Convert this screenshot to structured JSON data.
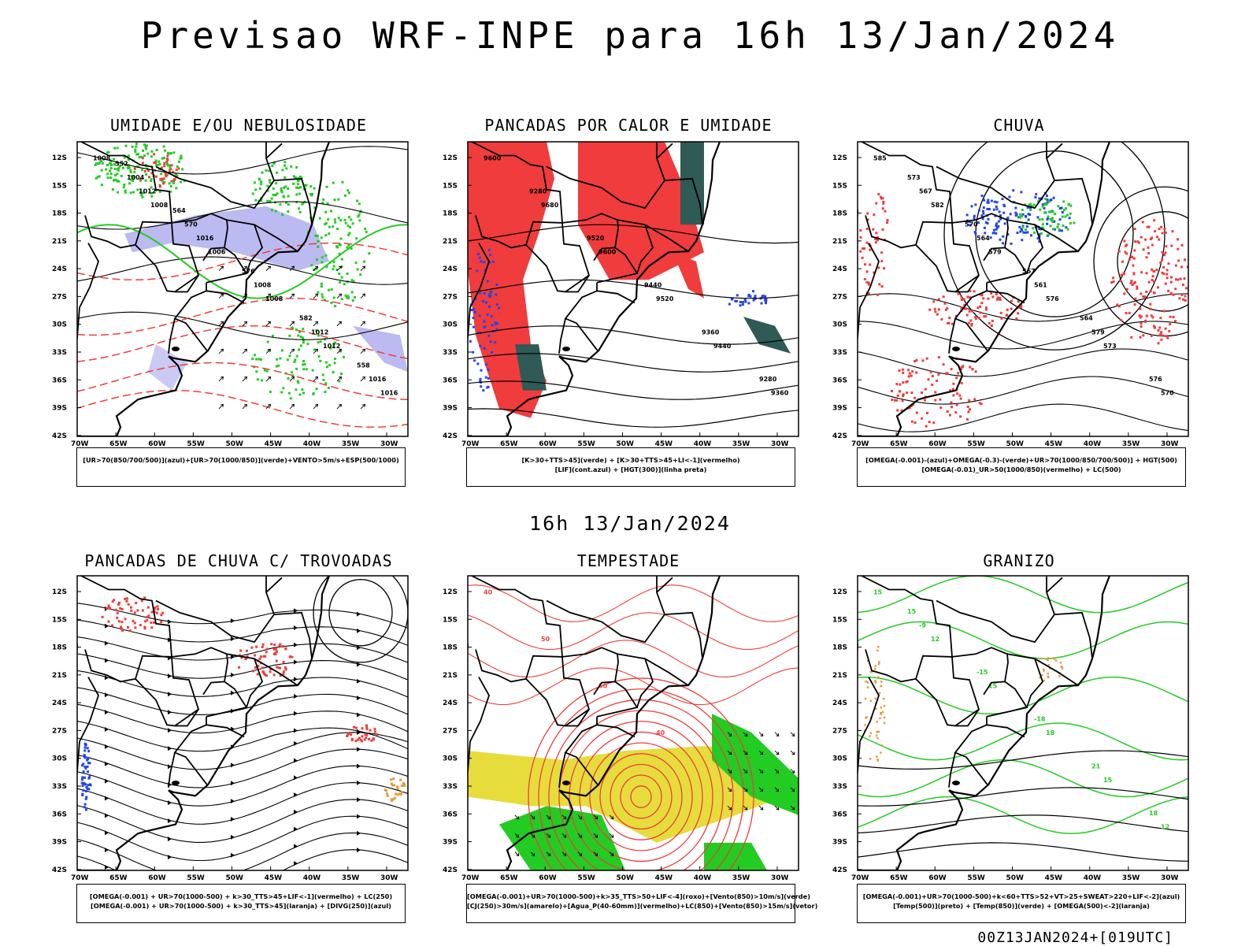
{
  "title": "Previsao WRF-INPE  para 16h 13/Jan/2024",
  "mid_title": "16h 13/Jan/2024",
  "footer": "00Z13JAN2024+[019UTC]",
  "axes": {
    "lat_labels": [
      "12S",
      "15S",
      "18S",
      "21S",
      "24S",
      "27S",
      "30S",
      "33S",
      "36S",
      "39S",
      "42S"
    ],
    "lon_labels": [
      "70W",
      "65W",
      "60W",
      "55W",
      "50W",
      "45W",
      "40W",
      "35W",
      "30W"
    ]
  },
  "colors": {
    "red": "#f03c3c",
    "green": "#22cc22",
    "blue": "#2244ee",
    "lavender": "#b4b4f0",
    "darkgreen": "#2f5a55",
    "yellow": "#e6dc3c",
    "orange": "#e69a3c"
  },
  "chart_data": [
    {
      "id": "umidade",
      "type": "heatmap",
      "title": "UMIDADE E/OU NEBULOSIDADE",
      "legend": [
        "[UR>70(850/700/500)](azul)+[UR>70(1000/850)](verde)+VENTO>5m/s+ESP(500/1000)"
      ],
      "contour_labels": [
        "1008",
        "1008",
        "1006",
        "1008",
        "1012",
        "1016",
        "1012",
        "1016",
        "1008",
        "1012",
        "1016",
        "1004",
        "570",
        "576",
        "582",
        "558",
        "552",
        "564"
      ]
    },
    {
      "id": "pancadas_calor",
      "type": "heatmap",
      "title": "PANCADAS POR CALOR E UMIDADE",
      "legend": [
        "[K>30+TTS>45](verde) + [K>30+TTS>45+LI<-1](vermelho)",
        "[LIF](cont.azul) + [HGT(300)](linha preta)"
      ],
      "contour_labels": [
        "9600",
        "9680",
        "9600",
        "9520",
        "9440",
        "9360",
        "9280",
        "9520",
        "9440",
        "9360",
        "9280"
      ]
    },
    {
      "id": "chuva",
      "type": "heatmap",
      "title": "CHUVA",
      "legend": [
        "[OMEGA(-0.001)-(azul)+OMEGA(-0.3)-(verde)+UR>70(1000/850/700/500)] + HGT(500)",
        "[OMEGA(-0.01)_UR>50(1000/850)(vermelho) + LC(500)"
      ],
      "contour_labels": [
        "585",
        "582",
        "579",
        "576",
        "573",
        "570",
        "567",
        "564",
        "561",
        "579",
        "576",
        "573",
        "570",
        "567",
        "564"
      ]
    },
    {
      "id": "pancadas_trovoadas",
      "type": "heatmap",
      "title": "PANCADAS DE CHUVA C/ TROVOADAS",
      "legend": [
        "[OMEGA(-0.001) + UR>70(1000-500) + k>30_TTS>45+LIF<-1](vermelho) + LC(250)",
        "[OMEGA(-0.001) + UR>70(1000-500) + k>30_TTS>45](laranja) + [DIVG(250)](azul)"
      ]
    },
    {
      "id": "tempestade",
      "type": "heatmap",
      "title": "TEMPESTADE",
      "legend": [
        "[OMEGA(-0.001)+UR>70(1000-500)+k>35_TTS>50+LIF<-4](roxo)+[Vento(850)>10m/s](verde)",
        "[CJ(250)>30m/s](amarelo)+[Agua_P(40-60mm)](vermelho)+LC(850)+[Vento(850)>15m/s](vetor)"
      ],
      "contour_labels": [
        "40",
        "50",
        "50",
        "40"
      ]
    },
    {
      "id": "granizo",
      "type": "heatmap",
      "title": "GRANIZO",
      "legend": [
        "[OMEGA(-0.001)+UR>70(1000-500)+k<60+TTS>52+VT>25+SWEAT>220+LIF<-2](azul)",
        "[Temp(500)](preto) + [Temp(850)](verde) + [OMEGA(500)<-2](laranja)"
      ],
      "contour_labels": [
        "15",
        "12",
        "15",
        "18",
        "15",
        "12",
        "-9",
        "-15",
        "-18",
        "21",
        "18",
        "15"
      ]
    }
  ]
}
